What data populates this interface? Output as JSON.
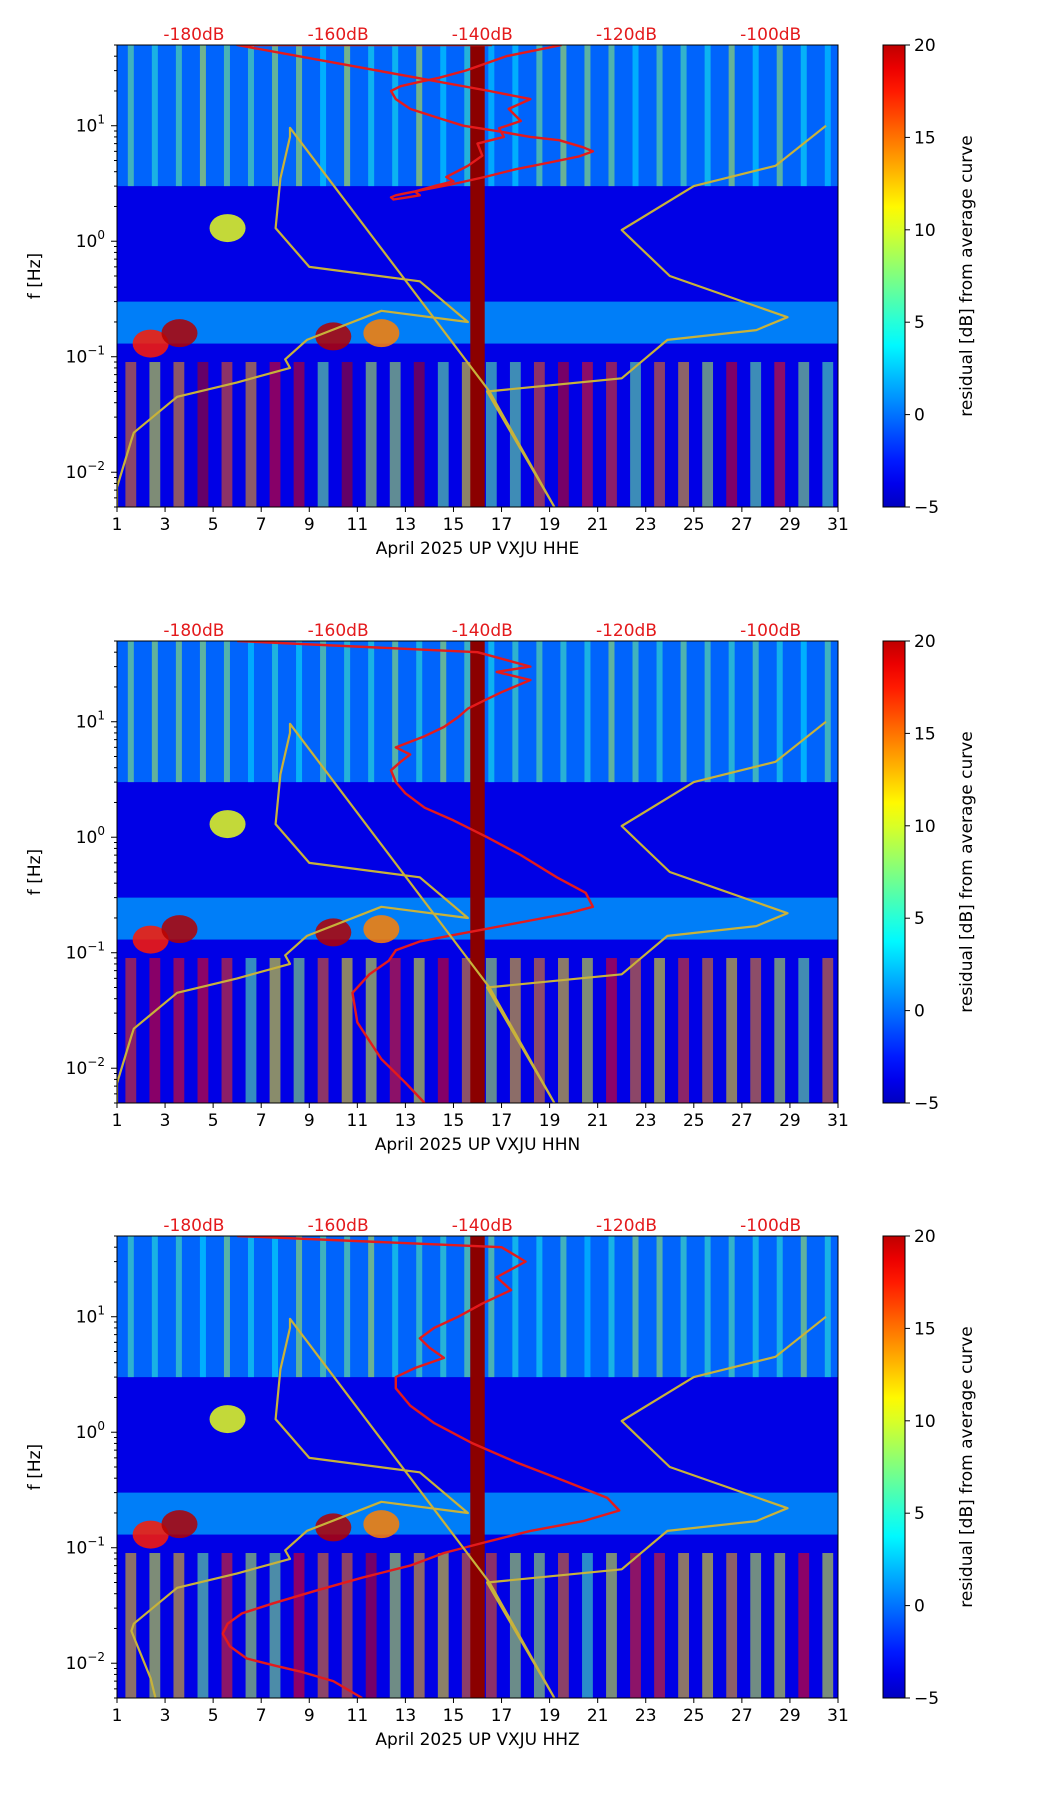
{
  "chart_data": [
    {
      "type": "heatmap",
      "title": "",
      "xlabel": "April 2025 UP VXJU  HHE",
      "ylabel": "f [Hz]",
      "xlim": [
        1,
        31
      ],
      "ylim": [
        0.005,
        50
      ],
      "yscale": "log",
      "x_ticks": [
        1,
        3,
        5,
        7,
        9,
        11,
        13,
        15,
        17,
        19,
        21,
        23,
        25,
        27,
        29,
        31
      ],
      "y_ticks": [
        {
          "value": 0.01,
          "base": "10",
          "exp": "−2"
        },
        {
          "value": 0.1,
          "base": "10",
          "exp": "−1"
        },
        {
          "value": 1,
          "base": "10",
          "exp": "0"
        },
        {
          "value": 10,
          "base": "10",
          "exp": "1"
        }
      ],
      "top_labels": [
        {
          "text": "-180dB",
          "x": 4.2
        },
        {
          "text": "-160dB",
          "x": 10.2
        },
        {
          "text": "-140dB",
          "x": 16.2
        },
        {
          "text": "-120dB",
          "x": 22.2
        },
        {
          "text": "-100dB",
          "x": 28.2
        }
      ],
      "colorbar": {
        "label": "residual [dB] from average curve",
        "min": -5,
        "max": 20,
        "ticks": [
          -5,
          0,
          5,
          10,
          15,
          20
        ]
      },
      "series": [
        {
          "name": "mean residual (red)",
          "color": "#e41a1c",
          "x": [
            19.5,
            17.2,
            15.5,
            14.4,
            13.6,
            12.8,
            12.4,
            12.6,
            13.2,
            14.2,
            15.4,
            16.8,
            18.2,
            19.4,
            20.4,
            20.8,
            20.2,
            19.0,
            17.6,
            16.3,
            14.9,
            13.8,
            13.0,
            12.6,
            12.4,
            12.5,
            13.1,
            13.6,
            13.4,
            14.2,
            15.0,
            14.7,
            15.6,
            16.2,
            16.0,
            17.1,
            16.9,
            17.8,
            17.3,
            18.2,
            16.5,
            6.0,
            16.6
          ],
          "y": [
            50,
            40,
            30,
            26,
            24,
            22,
            20,
            17,
            14,
            12,
            10,
            9,
            8,
            7.5,
            6.5,
            6.0,
            5.4,
            4.8,
            4.2,
            3.6,
            3.1,
            2.8,
            2.6,
            2.5,
            2.4,
            2.3,
            2.4,
            2.5,
            2.7,
            3.0,
            3.3,
            3.6,
            4.5,
            5.5,
            7.0,
            8.0,
            9.5,
            11.0,
            14.0,
            17.0,
            20.0,
            50.0,
            50.0
          ]
        },
        {
          "name": "reference curve (olive)",
          "color": "#c8b23a",
          "x": [
            1.0,
            1.0,
            1.6,
            1.7,
            3.5,
            6.0,
            8.2,
            8.0,
            8.9,
            12.0,
            15.6,
            13.6,
            9.0,
            7.6,
            7.8,
            8.2,
            8.2,
            16.5,
            19.2,
            16.4,
            22.0,
            23.9,
            27.6,
            28.9,
            24.0,
            22.0,
            25.0,
            28.4,
            30.5
          ],
          "y": [
            0.005,
            0.0074,
            0.019,
            0.022,
            0.045,
            0.06,
            0.08,
            0.095,
            0.14,
            0.25,
            0.2,
            0.45,
            0.6,
            1.3,
            3.5,
            8.0,
            9.6,
            0.05,
            0.005,
            0.05,
            0.065,
            0.14,
            0.17,
            0.22,
            0.5,
            1.25,
            3.0,
            4.5,
            10.0
          ]
        }
      ]
    },
    {
      "type": "heatmap",
      "title": "",
      "xlabel": "April 2025 UP VXJU  HHN",
      "ylabel": "f [Hz]",
      "xlim": [
        1,
        31
      ],
      "ylim": [
        0.005,
        50
      ],
      "yscale": "log",
      "x_ticks": [
        1,
        3,
        5,
        7,
        9,
        11,
        13,
        15,
        17,
        19,
        21,
        23,
        25,
        27,
        29,
        31
      ],
      "y_ticks": [
        {
          "value": 0.01,
          "base": "10",
          "exp": "−2"
        },
        {
          "value": 0.1,
          "base": "10",
          "exp": "−1"
        },
        {
          "value": 1,
          "base": "10",
          "exp": "0"
        },
        {
          "value": 10,
          "base": "10",
          "exp": "1"
        }
      ],
      "top_labels": [
        {
          "text": "-180dB",
          "x": 4.2
        },
        {
          "text": "-160dB",
          "x": 10.2
        },
        {
          "text": "-140dB",
          "x": 16.2
        },
        {
          "text": "-120dB",
          "x": 22.2
        },
        {
          "text": "-100dB",
          "x": 28.2
        }
      ],
      "colorbar": {
        "label": "residual [dB] from average curve",
        "min": -5,
        "max": 20,
        "ticks": [
          -5,
          0,
          5,
          10,
          15,
          20
        ]
      },
      "series": [
        {
          "name": "mean residual (red)",
          "color": "#e41a1c",
          "x": [
            13.8,
            13.0,
            12.0,
            11.0,
            10.8,
            11.5,
            12.3,
            12.6,
            13.6,
            14.8,
            16.3,
            18.2,
            19.8,
            20.8,
            20.5,
            19.3,
            17.8,
            16.4,
            15.0,
            13.8,
            13.0,
            12.6,
            12.4,
            12.8,
            13.2,
            12.6,
            13.8,
            14.6,
            15.2,
            15.6,
            16.2,
            17.0,
            18.2,
            16.8,
            18.2,
            16.0,
            6.0
          ],
          "y": [
            0.005,
            0.0075,
            0.012,
            0.025,
            0.045,
            0.065,
            0.085,
            0.105,
            0.125,
            0.14,
            0.16,
            0.19,
            0.22,
            0.25,
            0.33,
            0.45,
            0.7,
            1.0,
            1.4,
            1.8,
            2.4,
            3.0,
            3.8,
            4.5,
            5.2,
            6.0,
            7.5,
            9.0,
            11.0,
            13.0,
            15.0,
            18.0,
            23.0,
            27.0,
            30.0,
            40.0,
            50.0
          ]
        },
        {
          "name": "reference curve (olive)",
          "color": "#c8b23a",
          "x": [
            1.0,
            1.0,
            1.6,
            1.7,
            3.5,
            6.0,
            8.2,
            8.0,
            8.9,
            12.0,
            15.6,
            13.6,
            9.0,
            7.6,
            7.8,
            8.2,
            8.2,
            16.5,
            19.2,
            16.4,
            22.0,
            23.9,
            27.6,
            28.9,
            24.0,
            22.0,
            25.0,
            28.4,
            30.5
          ],
          "y": [
            0.005,
            0.0074,
            0.019,
            0.022,
            0.045,
            0.06,
            0.08,
            0.095,
            0.14,
            0.25,
            0.2,
            0.45,
            0.6,
            1.3,
            3.5,
            8.0,
            9.6,
            0.05,
            0.005,
            0.05,
            0.065,
            0.14,
            0.17,
            0.22,
            0.5,
            1.25,
            3.0,
            4.5,
            10.0
          ]
        }
      ]
    },
    {
      "type": "heatmap",
      "title": "",
      "xlabel": "April 2025 UP VXJU  HHZ",
      "ylabel": "f [Hz]",
      "xlim": [
        1,
        31
      ],
      "ylim": [
        0.005,
        50
      ],
      "yscale": "log",
      "x_ticks": [
        1,
        3,
        5,
        7,
        9,
        11,
        13,
        15,
        17,
        19,
        21,
        23,
        25,
        27,
        29,
        31
      ],
      "y_ticks": [
        {
          "value": 0.01,
          "base": "10",
          "exp": "−2"
        },
        {
          "value": 0.1,
          "base": "10",
          "exp": "−1"
        },
        {
          "value": 1,
          "base": "10",
          "exp": "0"
        },
        {
          "value": 10,
          "base": "10",
          "exp": "1"
        }
      ],
      "top_labels": [
        {
          "text": "-180dB",
          "x": 4.2
        },
        {
          "text": "-160dB",
          "x": 10.2
        },
        {
          "text": "-140dB",
          "x": 16.2
        },
        {
          "text": "-120dB",
          "x": 22.2
        },
        {
          "text": "-100dB",
          "x": 28.2
        }
      ],
      "colorbar": {
        "label": "residual [dB] from average curve",
        "min": -5,
        "max": 20,
        "ticks": [
          -5,
          0,
          5,
          10,
          15,
          20
        ]
      },
      "series": [
        {
          "name": "mean residual (red)",
          "color": "#e41a1c",
          "x": [
            11.2,
            10.0,
            8.6,
            7.6,
            6.4,
            5.7,
            5.4,
            5.6,
            6.2,
            7.5,
            9.2,
            11.2,
            13.2,
            14.6,
            16.2,
            18.2,
            20.4,
            21.9,
            21.4,
            19.6,
            17.6,
            15.8,
            14.2,
            13.2,
            12.6,
            12.6,
            13.4,
            14.6,
            14.0,
            13.6,
            14.2,
            15.2,
            16.2,
            17.4,
            16.8,
            18.0,
            17.0,
            6.0
          ],
          "y": [
            0.005,
            0.007,
            0.0085,
            0.0095,
            0.011,
            0.014,
            0.018,
            0.022,
            0.027,
            0.033,
            0.042,
            0.055,
            0.07,
            0.09,
            0.11,
            0.14,
            0.17,
            0.21,
            0.27,
            0.38,
            0.55,
            0.8,
            1.2,
            1.7,
            2.4,
            3.0,
            3.6,
            4.4,
            5.4,
            6.5,
            8.0,
            10.0,
            13.0,
            17.0,
            22.0,
            30.0,
            40.0,
            50.0
          ]
        },
        {
          "name": "reference curve (olive)",
          "color": "#c8b23a",
          "x": [
            2.6,
            2.4,
            1.6,
            1.7,
            3.5,
            6.0,
            8.2,
            8.0,
            8.9,
            12.0,
            15.6,
            13.6,
            9.0,
            7.6,
            7.8,
            8.2,
            8.2,
            16.5,
            19.2,
            16.4,
            22.0,
            23.9,
            27.6,
            28.9,
            24.0,
            22.0,
            25.0,
            28.4,
            30.5
          ],
          "y": [
            0.005,
            0.0074,
            0.019,
            0.022,
            0.045,
            0.06,
            0.08,
            0.095,
            0.14,
            0.25,
            0.2,
            0.45,
            0.6,
            1.3,
            3.5,
            8.0,
            9.6,
            0.05,
            0.005,
            0.05,
            0.065,
            0.14,
            0.17,
            0.22,
            0.5,
            1.25,
            3.0,
            4.5,
            10.0
          ]
        }
      ]
    }
  ]
}
